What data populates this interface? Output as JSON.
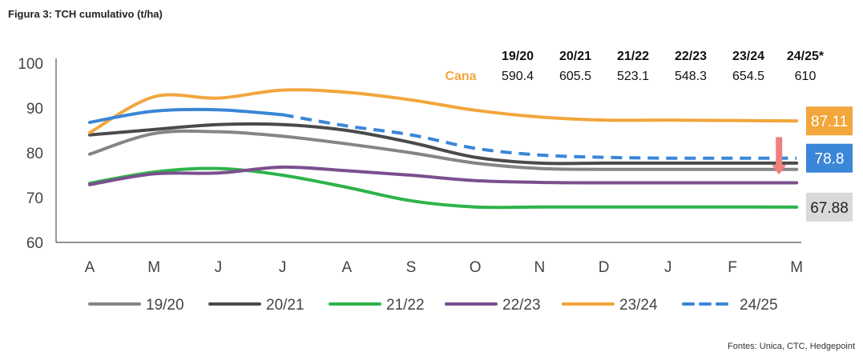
{
  "title": "Figura 3: TCH cumulativo (t/ha)",
  "source": "Fontes: Unica, CTC, Hedgepoint",
  "chart_data": {
    "type": "line",
    "title": "Figura 3: TCH cumulativo (t/ha)",
    "x": [
      "A",
      "M",
      "J",
      "J",
      "A",
      "S",
      "O",
      "N",
      "D",
      "J",
      "F",
      "M"
    ],
    "ylim": [
      60,
      100
    ],
    "yticks": [
      60,
      70,
      80,
      90,
      100
    ],
    "grid": false,
    "legend_position": "bottom",
    "series": [
      {
        "name": "19/20",
        "color": "#858585",
        "dashed": false,
        "width": 4,
        "values": [
          79.7,
          84.3,
          84.7,
          83.7,
          82.0,
          80.0,
          77.7,
          76.5,
          76.3,
          76.3,
          76.3,
          76.3
        ]
      },
      {
        "name": "20/21",
        "color": "#4a4a4a",
        "dashed": false,
        "width": 4,
        "values": [
          84.0,
          85.2,
          86.3,
          86.3,
          85.0,
          82.3,
          79.0,
          77.7,
          77.7,
          77.7,
          77.7,
          77.7
        ]
      },
      {
        "name": "21/22",
        "color": "#2db34a",
        "dashed": false,
        "width": 4,
        "values": [
          73.2,
          75.7,
          76.5,
          75.0,
          72.3,
          69.3,
          67.9,
          67.9,
          67.9,
          67.9,
          67.9,
          67.88
        ]
      },
      {
        "name": "22/23",
        "color": "#7b4f8e",
        "dashed": false,
        "width": 4,
        "values": [
          72.9,
          75.3,
          75.5,
          76.8,
          76.0,
          75.0,
          73.8,
          73.4,
          73.3,
          73.3,
          73.3,
          73.3
        ]
      },
      {
        "name": "23/24",
        "color": "#f2a63c",
        "dashed": false,
        "width": 4,
        "values": [
          84.5,
          92.5,
          92.2,
          94.0,
          93.5,
          91.8,
          89.5,
          88.0,
          87.3,
          87.3,
          87.2,
          87.11
        ]
      },
      {
        "name": "24/25",
        "color": "#3a86d8",
        "dashed": true,
        "width": 4,
        "values": [
          86.8,
          89.3,
          89.6,
          88.5,
          86.0,
          84.0,
          81.0,
          79.5,
          79.0,
          78.8,
          78.8,
          78.8
        ]
      }
    ],
    "end_labels": [
      {
        "text": "87.11",
        "value": 87.11,
        "bg": "#f2a63c",
        "color": "#ffffff"
      },
      {
        "text": "78.8",
        "value": 78.8,
        "bg": "#3a86d8",
        "color": "#ffffff"
      },
      {
        "text": "67.88",
        "value": 67.88,
        "bg": "#d9d9d9",
        "color": "#222222"
      }
    ],
    "arrow": {
      "x_index": 11,
      "from": 83.5,
      "to": 75.5,
      "color": "#f08080"
    },
    "table": {
      "row_label": "Cana",
      "row_label_color": "#f2a63c",
      "columns": [
        "19/20",
        "20/21",
        "21/22",
        "22/23",
        "23/24",
        "24/25*"
      ],
      "values": [
        "590.4",
        "605.5",
        "523.1",
        "548.3",
        "654.5",
        "610"
      ]
    }
  }
}
